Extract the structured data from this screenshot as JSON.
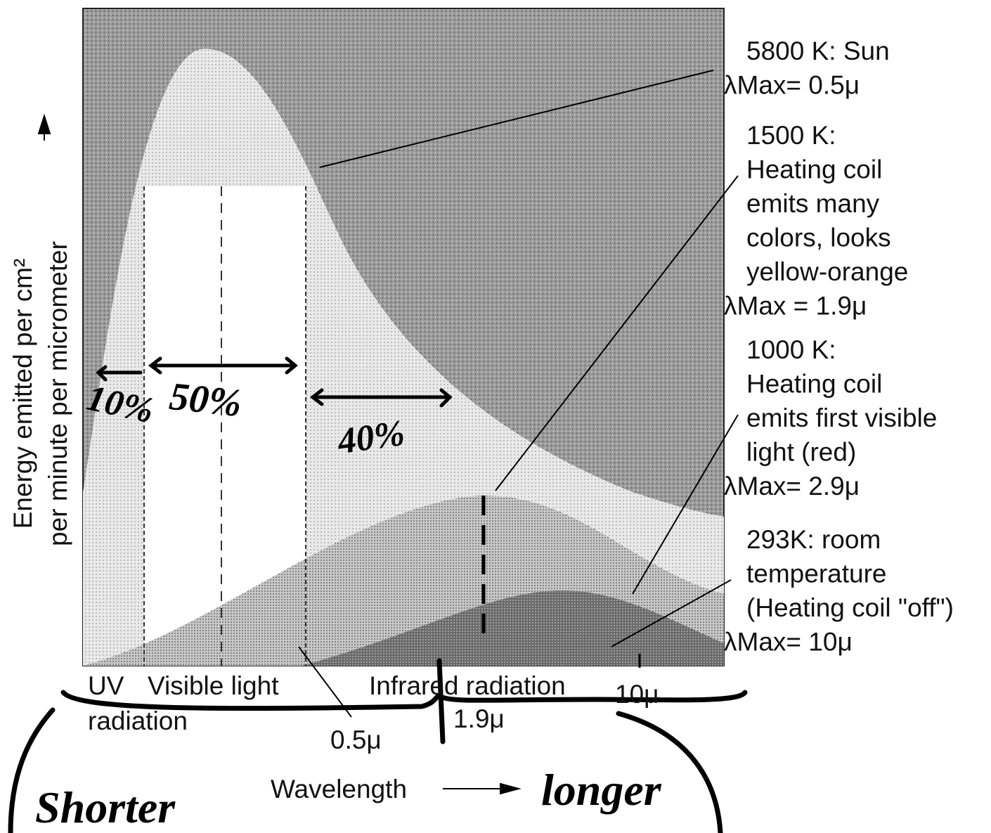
{
  "y_axis_label": {
    "lines": [
      "Energy emitted per cm² ",
      "per minute per micrometer"
    ]
  },
  "curves": [
    {
      "lines": [
        "5800 K: Sun"
      ],
      "lambda_max": "λMax= 0.5μ"
    },
    {
      "lines": [
        "1500 K:",
        "Heating coil",
        "emits many",
        "colors, looks",
        "yellow-orange"
      ],
      "lambda_max": "λMax = 1.9μ"
    },
    {
      "lines": [
        "1000 K:",
        "Heating coil",
        "emits first visible",
        "light (red)"
      ],
      "lambda_max": "λMax= 2.9μ"
    },
    {
      "lines": [
        "293K: room",
        "temperature",
        "(Heating coil \"off\")"
      ],
      "lambda_max": "λMax= 10μ"
    }
  ],
  "regions": {
    "uv": [
      "UV",
      "radiation"
    ],
    "visible": "Visible light",
    "infrared": "Infrared radiation"
  },
  "wavelength_marks": [
    "0.5μ",
    "1.9μ",
    "10μ"
  ],
  "x_axis_label": "Wavelength",
  "handwriting": {
    "shares": [
      "10%",
      "50%",
      "40%"
    ],
    "shorter": "Shorter",
    "longer": "longer"
  }
}
